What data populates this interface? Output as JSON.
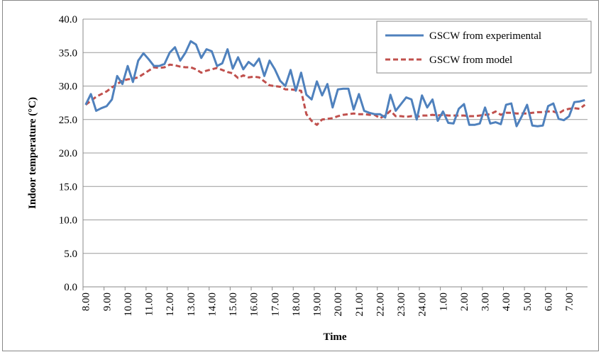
{
  "chart_data": {
    "type": "line",
    "y_label": "Indoor temperature (°C)",
    "x_label": "Time",
    "categories": [
      "8.00",
      null,
      null,
      null,
      "9.00",
      null,
      null,
      null,
      "10.00",
      null,
      null,
      null,
      "11.00",
      null,
      null,
      null,
      "12.00",
      null,
      null,
      null,
      "13.00",
      null,
      null,
      null,
      "14.00",
      null,
      null,
      null,
      "15.00",
      null,
      null,
      null,
      "16.00",
      null,
      null,
      null,
      "17.00",
      null,
      null,
      null,
      "18.00",
      null,
      null,
      null,
      "19.00",
      null,
      null,
      null,
      "20.00",
      null,
      null,
      null,
      "21.00",
      null,
      null,
      null,
      "22.00",
      null,
      null,
      null,
      "23.00",
      null,
      null,
      null,
      "24.00",
      null,
      null,
      null,
      "1.00",
      null,
      null,
      null,
      "2.00",
      null,
      null,
      null,
      "3.00",
      null,
      null,
      null,
      "4.00",
      null,
      null,
      null,
      "5.00",
      null,
      null,
      null,
      "6.00",
      null,
      null,
      null,
      "7.00",
      null,
      null,
      null
    ],
    "series": [
      {
        "name": "GSCW from experimental",
        "color": "#4f81bd",
        "dashed": false,
        "values": [
          27.2,
          28.8,
          26.3,
          26.7,
          27.0,
          28.0,
          31.5,
          30.3,
          33.0,
          30.6,
          33.8,
          34.9,
          34.0,
          33.0,
          33.0,
          33.3,
          35.0,
          35.8,
          33.8,
          35.0,
          36.7,
          36.2,
          34.2,
          35.5,
          35.2,
          33.0,
          33.4,
          35.5,
          32.6,
          34.3,
          32.5,
          33.6,
          33.0,
          34.1,
          31.5,
          33.8,
          32.5,
          30.8,
          30.0,
          32.4,
          29.3,
          32.0,
          28.7,
          28.0,
          30.7,
          28.6,
          30.3,
          26.8,
          29.5,
          29.6,
          29.6,
          26.5,
          28.8,
          26.3,
          26.0,
          25.8,
          25.8,
          25.3,
          28.7,
          26.3,
          27.3,
          28.3,
          28.0,
          25.0,
          28.6,
          26.8,
          28.0,
          24.8,
          26.2,
          24.5,
          24.4,
          26.6,
          27.3,
          24.2,
          24.2,
          24.4,
          26.8,
          24.4,
          24.6,
          24.3,
          27.2,
          27.4,
          24.0,
          25.5,
          27.2,
          24.1,
          24.0,
          24.1,
          27.0,
          27.4,
          25.1,
          24.9,
          25.5,
          27.6,
          27.7,
          27.9
        ]
      },
      {
        "name": "GSCW from model",
        "color": "#c0504d",
        "dashed": true,
        "values": [
          27.2,
          27.8,
          28.4,
          28.8,
          29.2,
          29.8,
          30.3,
          30.8,
          31.0,
          31.1,
          31.3,
          31.8,
          32.3,
          32.8,
          32.7,
          32.8,
          33.2,
          33.1,
          32.9,
          32.8,
          32.8,
          32.5,
          32.0,
          32.3,
          32.5,
          32.7,
          32.4,
          32.1,
          31.9,
          31.2,
          31.6,
          31.3,
          31.4,
          31.3,
          30.7,
          30.1,
          30.0,
          29.9,
          29.5,
          29.5,
          29.4,
          29.3,
          25.8,
          24.8,
          24.2,
          25.0,
          25.1,
          25.2,
          25.5,
          25.7,
          25.8,
          25.9,
          25.8,
          25.8,
          25.7,
          25.7,
          25.2,
          25.6,
          26.3,
          25.5,
          25.5,
          25.4,
          25.5,
          25.4,
          25.6,
          25.6,
          25.7,
          25.6,
          25.7,
          25.6,
          25.6,
          25.6,
          25.6,
          25.5,
          25.5,
          25.6,
          25.7,
          25.8,
          26.2,
          25.7,
          26.0,
          26.0,
          25.9,
          25.9,
          25.9,
          26.0,
          26.1,
          26.1,
          26.2,
          26.2,
          25.9,
          26.4,
          26.6,
          26.7,
          26.6,
          27.2
        ]
      }
    ],
    "ylim": [
      0,
      40
    ],
    "yticks": [
      {
        "value": 0,
        "label": "0.0"
      },
      {
        "value": 5,
        "label": "5.0"
      },
      {
        "value": 10,
        "label": "10.0"
      },
      {
        "value": 15,
        "label": "15.0"
      },
      {
        "value": 20,
        "label": "20.0"
      },
      {
        "value": 25,
        "label": "25.0"
      },
      {
        "value": 30,
        "label": "30.0"
      },
      {
        "value": 35,
        "label": "35.0"
      },
      {
        "value": 40,
        "label": "40.0"
      }
    ],
    "grid": true,
    "legend": "top-right"
  }
}
